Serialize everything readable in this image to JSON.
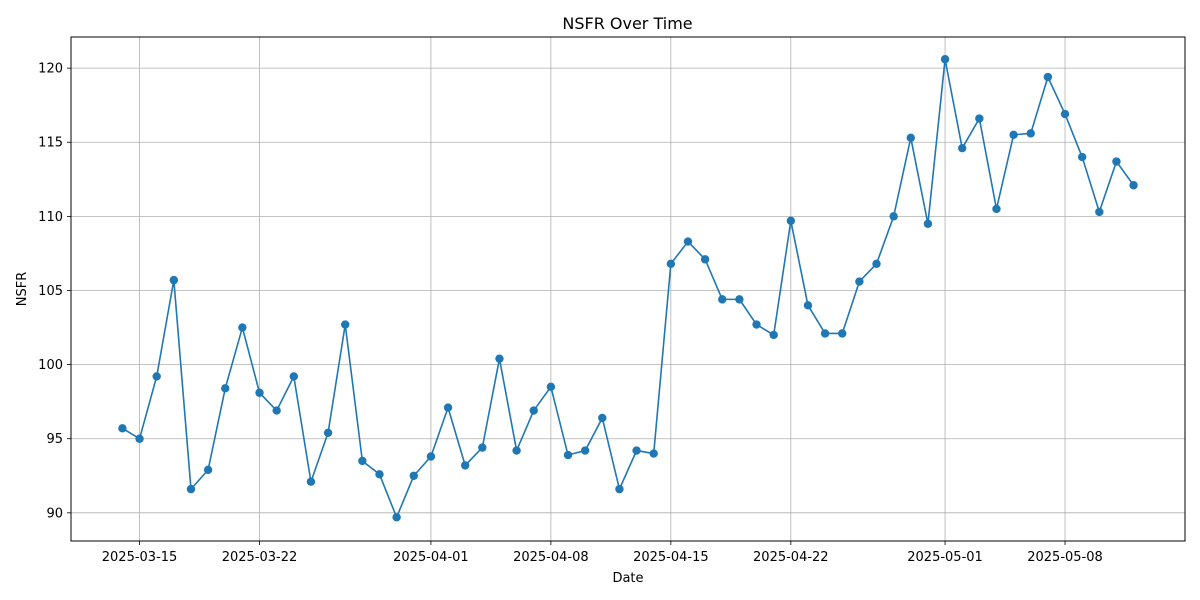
{
  "chart_data": {
    "type": "line",
    "title": "NSFR Over Time",
    "xlabel": "Date",
    "ylabel": "NSFR",
    "grid": true,
    "marker": "circle",
    "color": "#1f77b4",
    "x_start": "2025-03-14",
    "xlim": [
      "2025-03-11",
      "2025-05-15"
    ],
    "ylim": [
      88.1,
      122.1
    ],
    "x_ticks": [
      "2025-03-15",
      "2025-03-22",
      "2025-04-01",
      "2025-04-08",
      "2025-04-15",
      "2025-04-22",
      "2025-05-01",
      "2025-05-08"
    ],
    "y_ticks": [
      90,
      95,
      100,
      105,
      110,
      115,
      120
    ],
    "series": [
      {
        "values": [
          95.7,
          95.0,
          99.2,
          105.7,
          91.6,
          92.9,
          98.4,
          102.5,
          98.1,
          96.9,
          99.2,
          92.1,
          95.4,
          102.7,
          93.5,
          92.6,
          89.7,
          92.5,
          93.8,
          97.1,
          93.2,
          94.4,
          100.4,
          94.2,
          96.9,
          98.5,
          93.9,
          94.2,
          96.4,
          91.6,
          94.2,
          94.0,
          106.8,
          108.3,
          107.1,
          104.4,
          104.4,
          102.7,
          102.0,
          109.7,
          104.0,
          102.1,
          102.1,
          105.6,
          106.8,
          110.0,
          115.3,
          109.5,
          120.6,
          114.6,
          116.6,
          110.5,
          115.5,
          115.6,
          119.4,
          116.9,
          114.0,
          110.3,
          113.7,
          112.1
        ]
      }
    ]
  }
}
